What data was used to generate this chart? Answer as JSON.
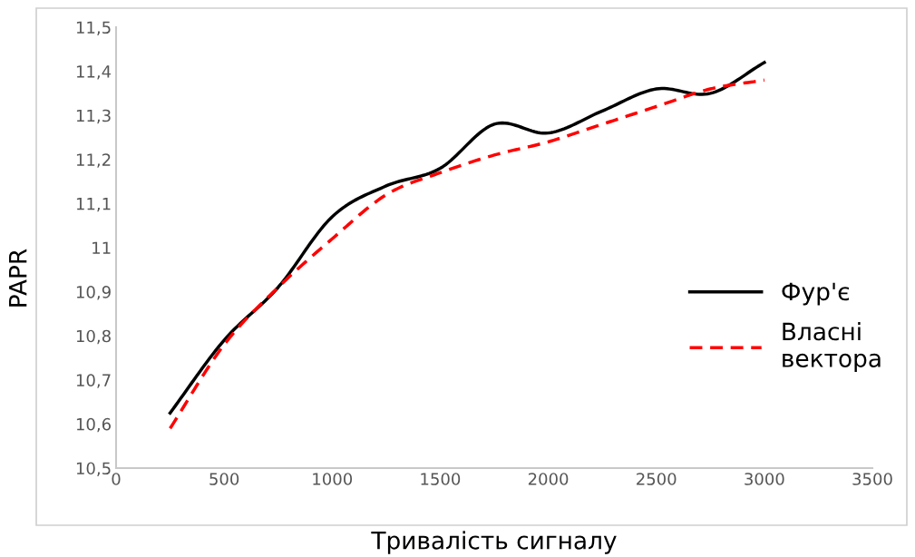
{
  "chart_data": {
    "type": "line",
    "xlabel": "Тривалість сигналу",
    "ylabel": "PAPR",
    "x": [
      250,
      500,
      750,
      1000,
      1250,
      1500,
      1750,
      2000,
      2250,
      2500,
      2750,
      3000
    ],
    "series": [
      {
        "name": "Фур'є",
        "color": "#000000",
        "line_style": "solid",
        "values": [
          10.625,
          10.79,
          10.91,
          11.07,
          11.14,
          11.18,
          11.28,
          11.26,
          11.31,
          11.36,
          11.35,
          11.42
        ]
      },
      {
        "name": "Власні\nвектора",
        "color": "#ff0000",
        "line_style": "dashed",
        "values": [
          10.59,
          10.78,
          10.91,
          11.02,
          11.12,
          11.17,
          11.21,
          11.24,
          11.28,
          11.32,
          11.36,
          11.38
        ]
      }
    ],
    "xlim": [
      0,
      3500
    ],
    "xticks": [
      0,
      500,
      1000,
      1500,
      2000,
      2500,
      3000,
      3500
    ],
    "ylim": [
      10.5,
      11.5
    ],
    "yticks": [
      {
        "value": 10.5,
        "label": "10,5"
      },
      {
        "value": 10.6,
        "label": "10,6"
      },
      {
        "value": 10.7,
        "label": "10,7"
      },
      {
        "value": 10.8,
        "label": "10,8"
      },
      {
        "value": 10.9,
        "label": "10,9"
      },
      11,
      {
        "value": 11.1,
        "label": "11,1"
      },
      {
        "value": 11.2,
        "label": "11,2"
      },
      {
        "value": 11.3,
        "label": "11,3"
      },
      {
        "value": 11.4,
        "label": "11,4"
      },
      {
        "value": 11.5,
        "label": "11,5"
      }
    ],
    "grid": false,
    "legend": "right",
    "marker": "none"
  }
}
